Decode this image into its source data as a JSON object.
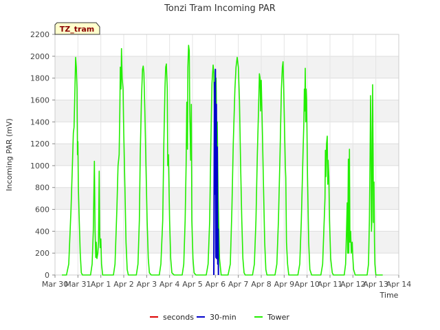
{
  "chart_data": {
    "type": "line",
    "title": "Tonzi Tram Incoming PAR",
    "xlabel": "Time",
    "ylabel": "Incoming PAR (mV)",
    "ylim": [
      0,
      2200
    ],
    "yticks": [
      0,
      200,
      400,
      600,
      800,
      1000,
      1200,
      1400,
      1600,
      1800,
      2000,
      2200
    ],
    "xlim": [
      0,
      15
    ],
    "xticks": [
      {
        "value": 0,
        "label": "Mar 30"
      },
      {
        "value": 1,
        "label": "Mar 31"
      },
      {
        "value": 2,
        "label": "Apr 1"
      },
      {
        "value": 3,
        "label": "Apr 2"
      },
      {
        "value": 4,
        "label": "Apr 3"
      },
      {
        "value": 5,
        "label": "Apr 4"
      },
      {
        "value": 6,
        "label": "Apr 5"
      },
      {
        "value": 7,
        "label": "Apr 6"
      },
      {
        "value": 8,
        "label": "Apr 7"
      },
      {
        "value": 9,
        "label": "Apr 8"
      },
      {
        "value": 10,
        "label": "Apr 9"
      },
      {
        "value": 11,
        "label": "Apr 10"
      },
      {
        "value": 12,
        "label": "Apr 11"
      },
      {
        "value": 13,
        "label": "Apr 12"
      },
      {
        "value": 14,
        "label": "Apr 13"
      },
      {
        "value": 15,
        "label": "Apr 14"
      }
    ],
    "grid": true,
    "legend_position": "bottom",
    "badge": "TZ_tram",
    "series": [
      {
        "name": "seconds",
        "color": "#dd0000",
        "points": []
      },
      {
        "name": "30-min",
        "color": "#0000cc",
        "points": [
          [
            6.93,
            0
          ],
          [
            6.96,
            1760
          ],
          [
            6.98,
            740
          ],
          [
            7.0,
            1880
          ],
          [
            7.02,
            160
          ],
          [
            7.04,
            1560
          ],
          [
            7.06,
            150
          ],
          [
            7.08,
            1170
          ],
          [
            7.1,
            100
          ],
          [
            7.12,
            420
          ],
          [
            7.13,
            0
          ]
        ]
      },
      {
        "name": "Tower",
        "color": "#22ee00",
        "points": [
          [
            0.3,
            0
          ],
          [
            0.5,
            0
          ],
          [
            0.6,
            100
          ],
          [
            0.7,
            600
          ],
          [
            0.76,
            1000
          ],
          [
            0.8,
            1300
          ],
          [
            0.83,
            1350
          ],
          [
            0.87,
            1700
          ],
          [
            0.9,
            1990
          ],
          [
            0.93,
            1900
          ],
          [
            0.96,
            1700
          ],
          [
            0.98,
            1100
          ],
          [
            1.0,
            1220
          ],
          [
            1.02,
            800
          ],
          [
            1.05,
            560
          ],
          [
            1.1,
            200
          ],
          [
            1.15,
            20
          ],
          [
            1.2,
            0
          ],
          [
            1.55,
            0
          ],
          [
            1.62,
            100
          ],
          [
            1.67,
            400
          ],
          [
            1.72,
            1040
          ],
          [
            1.75,
            400
          ],
          [
            1.78,
            160
          ],
          [
            1.8,
            300
          ],
          [
            1.83,
            150
          ],
          [
            1.87,
            200
          ],
          [
            1.9,
            300
          ],
          [
            1.93,
            950
          ],
          [
            1.95,
            380
          ],
          [
            1.97,
            250
          ],
          [
            2.0,
            330
          ],
          [
            2.03,
            100
          ],
          [
            2.08,
            0
          ],
          [
            2.55,
            0
          ],
          [
            2.62,
            100
          ],
          [
            2.7,
            600
          ],
          [
            2.75,
            1000
          ],
          [
            2.8,
            1100
          ],
          [
            2.83,
            1500
          ],
          [
            2.85,
            1900
          ],
          [
            2.88,
            1700
          ],
          [
            2.9,
            2070
          ],
          [
            2.93,
            1800
          ],
          [
            2.97,
            1700
          ],
          [
            3.0,
            1300
          ],
          [
            3.05,
            800
          ],
          [
            3.1,
            300
          ],
          [
            3.15,
            50
          ],
          [
            3.2,
            0
          ],
          [
            3.55,
            0
          ],
          [
            3.62,
            100
          ],
          [
            3.68,
            500
          ],
          [
            3.72,
            1100
          ],
          [
            3.77,
            1600
          ],
          [
            3.82,
            1880
          ],
          [
            3.85,
            1910
          ],
          [
            3.88,
            1850
          ],
          [
            3.92,
            1500
          ],
          [
            3.97,
            1000
          ],
          [
            4.02,
            500
          ],
          [
            4.07,
            150
          ],
          [
            4.12,
            20
          ],
          [
            4.2,
            0
          ],
          [
            4.55,
            0
          ],
          [
            4.62,
            100
          ],
          [
            4.7,
            500
          ],
          [
            4.75,
            1200
          ],
          [
            4.8,
            1720
          ],
          [
            4.83,
            1900
          ],
          [
            4.86,
            1930
          ],
          [
            4.9,
            1700
          ],
          [
            4.92,
            1000
          ],
          [
            4.95,
            1100
          ],
          [
            5.0,
            500
          ],
          [
            5.05,
            150
          ],
          [
            5.1,
            20
          ],
          [
            5.2,
            0
          ],
          [
            5.55,
            0
          ],
          [
            5.62,
            100
          ],
          [
            5.68,
            500
          ],
          [
            5.72,
            1000
          ],
          [
            5.75,
            1580
          ],
          [
            5.78,
            1150
          ],
          [
            5.8,
            1900
          ],
          [
            5.83,
            2100
          ],
          [
            5.86,
            2050
          ],
          [
            5.88,
            1500
          ],
          [
            5.92,
            1050
          ],
          [
            5.95,
            1560
          ],
          [
            5.97,
            500
          ],
          [
            6.02,
            150
          ],
          [
            6.07,
            20
          ],
          [
            6.15,
            0
          ],
          [
            6.6,
            0
          ],
          [
            6.68,
            100
          ],
          [
            6.75,
            500
          ],
          [
            6.8,
            1200
          ],
          [
            6.85,
            1750
          ],
          [
            6.9,
            1920
          ],
          [
            6.93,
            1850
          ],
          [
            6.96,
            1400
          ],
          [
            7.0,
            1500
          ],
          [
            7.03,
            1800
          ],
          [
            7.06,
            1200
          ],
          [
            7.08,
            1400
          ],
          [
            7.12,
            700
          ],
          [
            7.18,
            150
          ],
          [
            7.25,
            0
          ],
          [
            7.55,
            0
          ],
          [
            7.65,
            100
          ],
          [
            7.72,
            600
          ],
          [
            7.78,
            1200
          ],
          [
            7.85,
            1700
          ],
          [
            7.9,
            1900
          ],
          [
            7.95,
            1990
          ],
          [
            8.0,
            1900
          ],
          [
            8.05,
            1600
          ],
          [
            8.1,
            1000
          ],
          [
            8.15,
            500
          ],
          [
            8.2,
            150
          ],
          [
            8.25,
            20
          ],
          [
            8.3,
            0
          ],
          [
            8.62,
            0
          ],
          [
            8.7,
            100
          ],
          [
            8.77,
            500
          ],
          [
            8.83,
            1100
          ],
          [
            8.88,
            1500
          ],
          [
            8.92,
            1840
          ],
          [
            8.95,
            1800
          ],
          [
            8.97,
            1500
          ],
          [
            9.0,
            1780
          ],
          [
            9.05,
            1300
          ],
          [
            9.1,
            800
          ],
          [
            9.15,
            300
          ],
          [
            9.2,
            50
          ],
          [
            9.25,
            0
          ],
          [
            9.6,
            0
          ],
          [
            9.68,
            100
          ],
          [
            9.75,
            500
          ],
          [
            9.82,
            1100
          ],
          [
            9.88,
            1700
          ],
          [
            9.92,
            1900
          ],
          [
            9.95,
            1950
          ],
          [
            9.98,
            1700
          ],
          [
            10.02,
            1300
          ],
          [
            10.05,
            1000
          ],
          [
            10.07,
            890
          ],
          [
            10.1,
            300
          ],
          [
            10.15,
            100
          ],
          [
            10.2,
            0
          ],
          [
            10.6,
            0
          ],
          [
            10.68,
            100
          ],
          [
            10.75,
            500
          ],
          [
            10.82,
            1100
          ],
          [
            10.86,
            1400
          ],
          [
            10.88,
            1700
          ],
          [
            10.9,
            1500
          ],
          [
            10.92,
            1890
          ],
          [
            10.94,
            1400
          ],
          [
            10.96,
            1700
          ],
          [
            10.98,
            1600
          ],
          [
            11.02,
            900
          ],
          [
            11.07,
            300
          ],
          [
            11.12,
            50
          ],
          [
            11.2,
            0
          ],
          [
            11.6,
            0
          ],
          [
            11.68,
            100
          ],
          [
            11.73,
            400
          ],
          [
            11.78,
            700
          ],
          [
            11.8,
            1140
          ],
          [
            11.82,
            900
          ],
          [
            11.85,
            1200
          ],
          [
            11.88,
            1270
          ],
          [
            11.9,
            830
          ],
          [
            11.92,
            1050
          ],
          [
            11.95,
            900
          ],
          [
            11.98,
            500
          ],
          [
            12.03,
            150
          ],
          [
            12.1,
            20
          ],
          [
            12.15,
            0
          ],
          [
            12.62,
            0
          ],
          [
            12.68,
            100
          ],
          [
            12.72,
            400
          ],
          [
            12.75,
            660
          ],
          [
            12.77,
            200
          ],
          [
            12.8,
            1060
          ],
          [
            12.82,
            200
          ],
          [
            12.85,
            1150
          ],
          [
            12.87,
            300
          ],
          [
            12.9,
            400
          ],
          [
            12.93,
            200
          ],
          [
            12.97,
            300
          ],
          [
            13.0,
            150
          ],
          [
            13.03,
            50
          ],
          [
            13.1,
            0
          ],
          [
            13.62,
            0
          ],
          [
            13.68,
            100
          ],
          [
            13.72,
            500
          ],
          [
            13.75,
            1100
          ],
          [
            13.77,
            1640
          ],
          [
            13.79,
            1300
          ],
          [
            13.81,
            400
          ],
          [
            13.83,
            500
          ],
          [
            13.86,
            1740
          ],
          [
            13.88,
            1100
          ],
          [
            13.9,
            480
          ],
          [
            13.92,
            850
          ],
          [
            13.94,
            300
          ],
          [
            13.96,
            100
          ],
          [
            14.0,
            0
          ],
          [
            14.3,
            0
          ]
        ]
      }
    ]
  }
}
